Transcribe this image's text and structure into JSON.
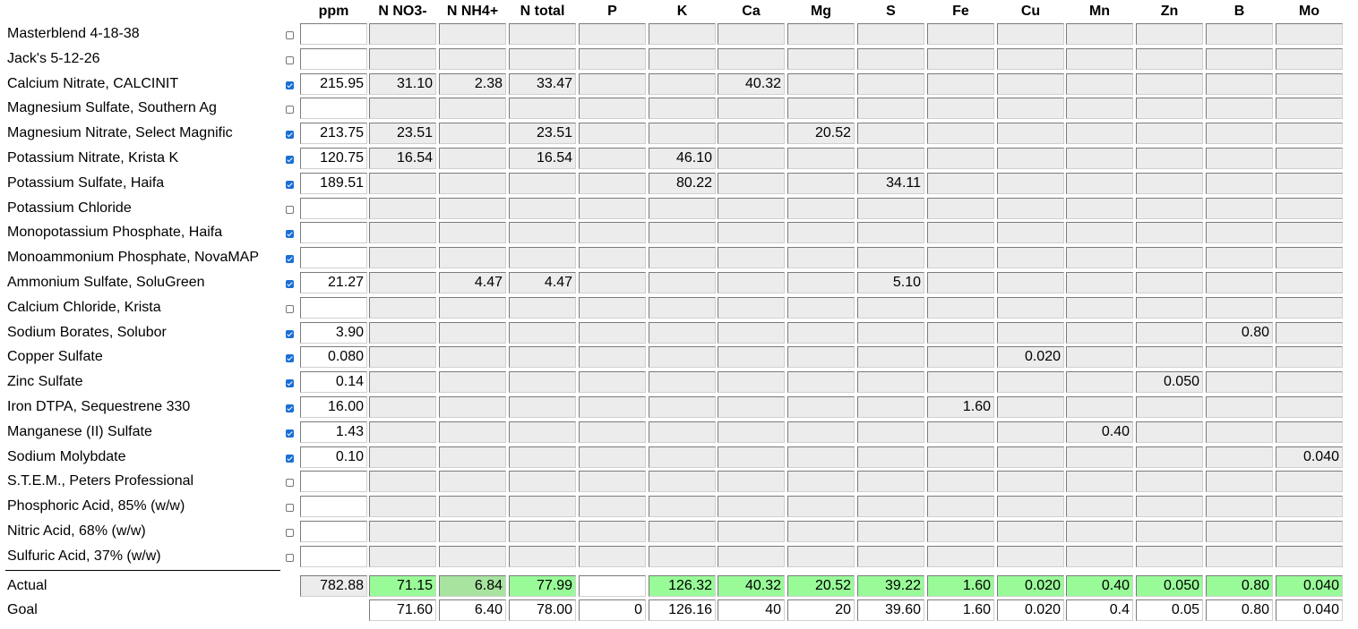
{
  "columns": [
    "ppm",
    "N NO3-",
    "N NH4+",
    "N total",
    "P",
    "K",
    "Ca",
    "Mg",
    "S",
    "Fe",
    "Cu",
    "Mn",
    "Zn",
    "B",
    "Mo"
  ],
  "rows": [
    {
      "name": "Masterblend 4-18-38",
      "checked": false,
      "values": [
        "",
        "",
        "",
        "",
        "",
        "",
        "",
        "",
        "",
        "",
        "",
        "",
        "",
        "",
        ""
      ]
    },
    {
      "name": "Jack's 5-12-26",
      "checked": false,
      "values": [
        "",
        "",
        "",
        "",
        "",
        "",
        "",
        "",
        "",
        "",
        "",
        "",
        "",
        "",
        ""
      ]
    },
    {
      "name": "Calcium Nitrate, CALCINIT",
      "checked": true,
      "values": [
        "215.95",
        "31.10",
        "2.38",
        "33.47",
        "",
        "",
        "40.32",
        "",
        "",
        "",
        "",
        "",
        "",
        "",
        ""
      ]
    },
    {
      "name": "Magnesium Sulfate, Southern Ag",
      "checked": false,
      "values": [
        "",
        "",
        "",
        "",
        "",
        "",
        "",
        "",
        "",
        "",
        "",
        "",
        "",
        "",
        ""
      ]
    },
    {
      "name": "Magnesium Nitrate, Select Magnific",
      "checked": true,
      "values": [
        "213.75",
        "23.51",
        "",
        "23.51",
        "",
        "",
        "",
        "20.52",
        "",
        "",
        "",
        "",
        "",
        "",
        ""
      ]
    },
    {
      "name": "Potassium Nitrate, Krista K",
      "checked": true,
      "values": [
        "120.75",
        "16.54",
        "",
        "16.54",
        "",
        "46.10",
        "",
        "",
        "",
        "",
        "",
        "",
        "",
        "",
        ""
      ]
    },
    {
      "name": "Potassium Sulfate, Haifa",
      "checked": true,
      "values": [
        "189.51",
        "",
        "",
        "",
        "",
        "80.22",
        "",
        "",
        "34.11",
        "",
        "",
        "",
        "",
        "",
        ""
      ]
    },
    {
      "name": "Potassium Chloride",
      "checked": false,
      "values": [
        "",
        "",
        "",
        "",
        "",
        "",
        "",
        "",
        "",
        "",
        "",
        "",
        "",
        "",
        ""
      ]
    },
    {
      "name": "Monopotassium Phosphate, Haifa",
      "checked": true,
      "values": [
        "",
        "",
        "",
        "",
        "",
        "",
        "",
        "",
        "",
        "",
        "",
        "",
        "",
        "",
        ""
      ]
    },
    {
      "name": "Monoammonium Phosphate, NovaMAP",
      "checked": true,
      "values": [
        "",
        "",
        "",
        "",
        "",
        "",
        "",
        "",
        "",
        "",
        "",
        "",
        "",
        "",
        ""
      ]
    },
    {
      "name": "Ammonium Sulfate, SoluGreen",
      "checked": true,
      "values": [
        "21.27",
        "",
        "4.47",
        "4.47",
        "",
        "",
        "",
        "",
        "5.10",
        "",
        "",
        "",
        "",
        "",
        ""
      ]
    },
    {
      "name": "Calcium Chloride, Krista",
      "checked": false,
      "values": [
        "",
        "",
        "",
        "",
        "",
        "",
        "",
        "",
        "",
        "",
        "",
        "",
        "",
        "",
        ""
      ]
    },
    {
      "name": "Sodium Borates, Solubor",
      "checked": true,
      "values": [
        "3.90",
        "",
        "",
        "",
        "",
        "",
        "",
        "",
        "",
        "",
        "",
        "",
        "",
        "0.80",
        ""
      ]
    },
    {
      "name": "Copper Sulfate",
      "checked": true,
      "values": [
        "0.080",
        "",
        "",
        "",
        "",
        "",
        "",
        "",
        "",
        "",
        "0.020",
        "",
        "",
        "",
        ""
      ]
    },
    {
      "name": "Zinc Sulfate",
      "checked": true,
      "values": [
        "0.14",
        "",
        "",
        "",
        "",
        "",
        "",
        "",
        "",
        "",
        "",
        "",
        "0.050",
        "",
        ""
      ]
    },
    {
      "name": "Iron DTPA, Sequestrene 330",
      "checked": true,
      "values": [
        "16.00",
        "",
        "",
        "",
        "",
        "",
        "",
        "",
        "",
        "1.60",
        "",
        "",
        "",
        "",
        ""
      ]
    },
    {
      "name": "Manganese (II) Sulfate",
      "checked": true,
      "values": [
        "1.43",
        "",
        "",
        "",
        "",
        "",
        "",
        "",
        "",
        "",
        "",
        "0.40",
        "",
        "",
        ""
      ]
    },
    {
      "name": "Sodium Molybdate",
      "checked": true,
      "values": [
        "0.10",
        "",
        "",
        "",
        "",
        "",
        "",
        "",
        "",
        "",
        "",
        "",
        "",
        "",
        "0.040"
      ]
    },
    {
      "name": "S.T.E.M., Peters Professional",
      "checked": false,
      "values": [
        "",
        "",
        "",
        "",
        "",
        "",
        "",
        "",
        "",
        "",
        "",
        "",
        "",
        "",
        ""
      ]
    },
    {
      "name": "Phosphoric Acid, 85% (w/w)",
      "checked": false,
      "values": [
        "",
        "",
        "",
        "",
        "",
        "",
        "",
        "",
        "",
        "",
        "",
        "",
        "",
        "",
        ""
      ]
    },
    {
      "name": "Nitric Acid, 68% (w/w)",
      "checked": false,
      "values": [
        "",
        "",
        "",
        "",
        "",
        "",
        "",
        "",
        "",
        "",
        "",
        "",
        "",
        "",
        ""
      ]
    },
    {
      "name": "Sulfuric Acid, 37% (w/w)",
      "checked": false,
      "values": [
        "",
        "",
        "",
        "",
        "",
        "",
        "",
        "",
        "",
        "",
        "",
        "",
        "",
        "",
        ""
      ]
    }
  ],
  "actual": {
    "label": "Actual",
    "values": [
      "782.88",
      "71.15",
      "6.84",
      "77.99",
      "",
      "126.32",
      "40.32",
      "20.52",
      "39.22",
      "1.60",
      "0.020",
      "0.40",
      "0.050",
      "0.80",
      "0.040"
    ],
    "colors": [
      "#ececec",
      "#98fb98",
      "#a8e4a0",
      "#98fb98",
      "#ffffff",
      "#98fb98",
      "#98fb98",
      "#98fb98",
      "#98fb98",
      "#98fb98",
      "#98fb98",
      "#98fb98",
      "#98fb98",
      "#98fb98",
      "#98fb98"
    ]
  },
  "goal": {
    "label": "Goal",
    "values": [
      "",
      "71.60",
      "6.40",
      "78.00",
      "0",
      "126.16",
      "40",
      "20",
      "39.60",
      "1.60",
      "0.020",
      "0.4",
      "0.05",
      "0.80",
      "0.040"
    ]
  }
}
